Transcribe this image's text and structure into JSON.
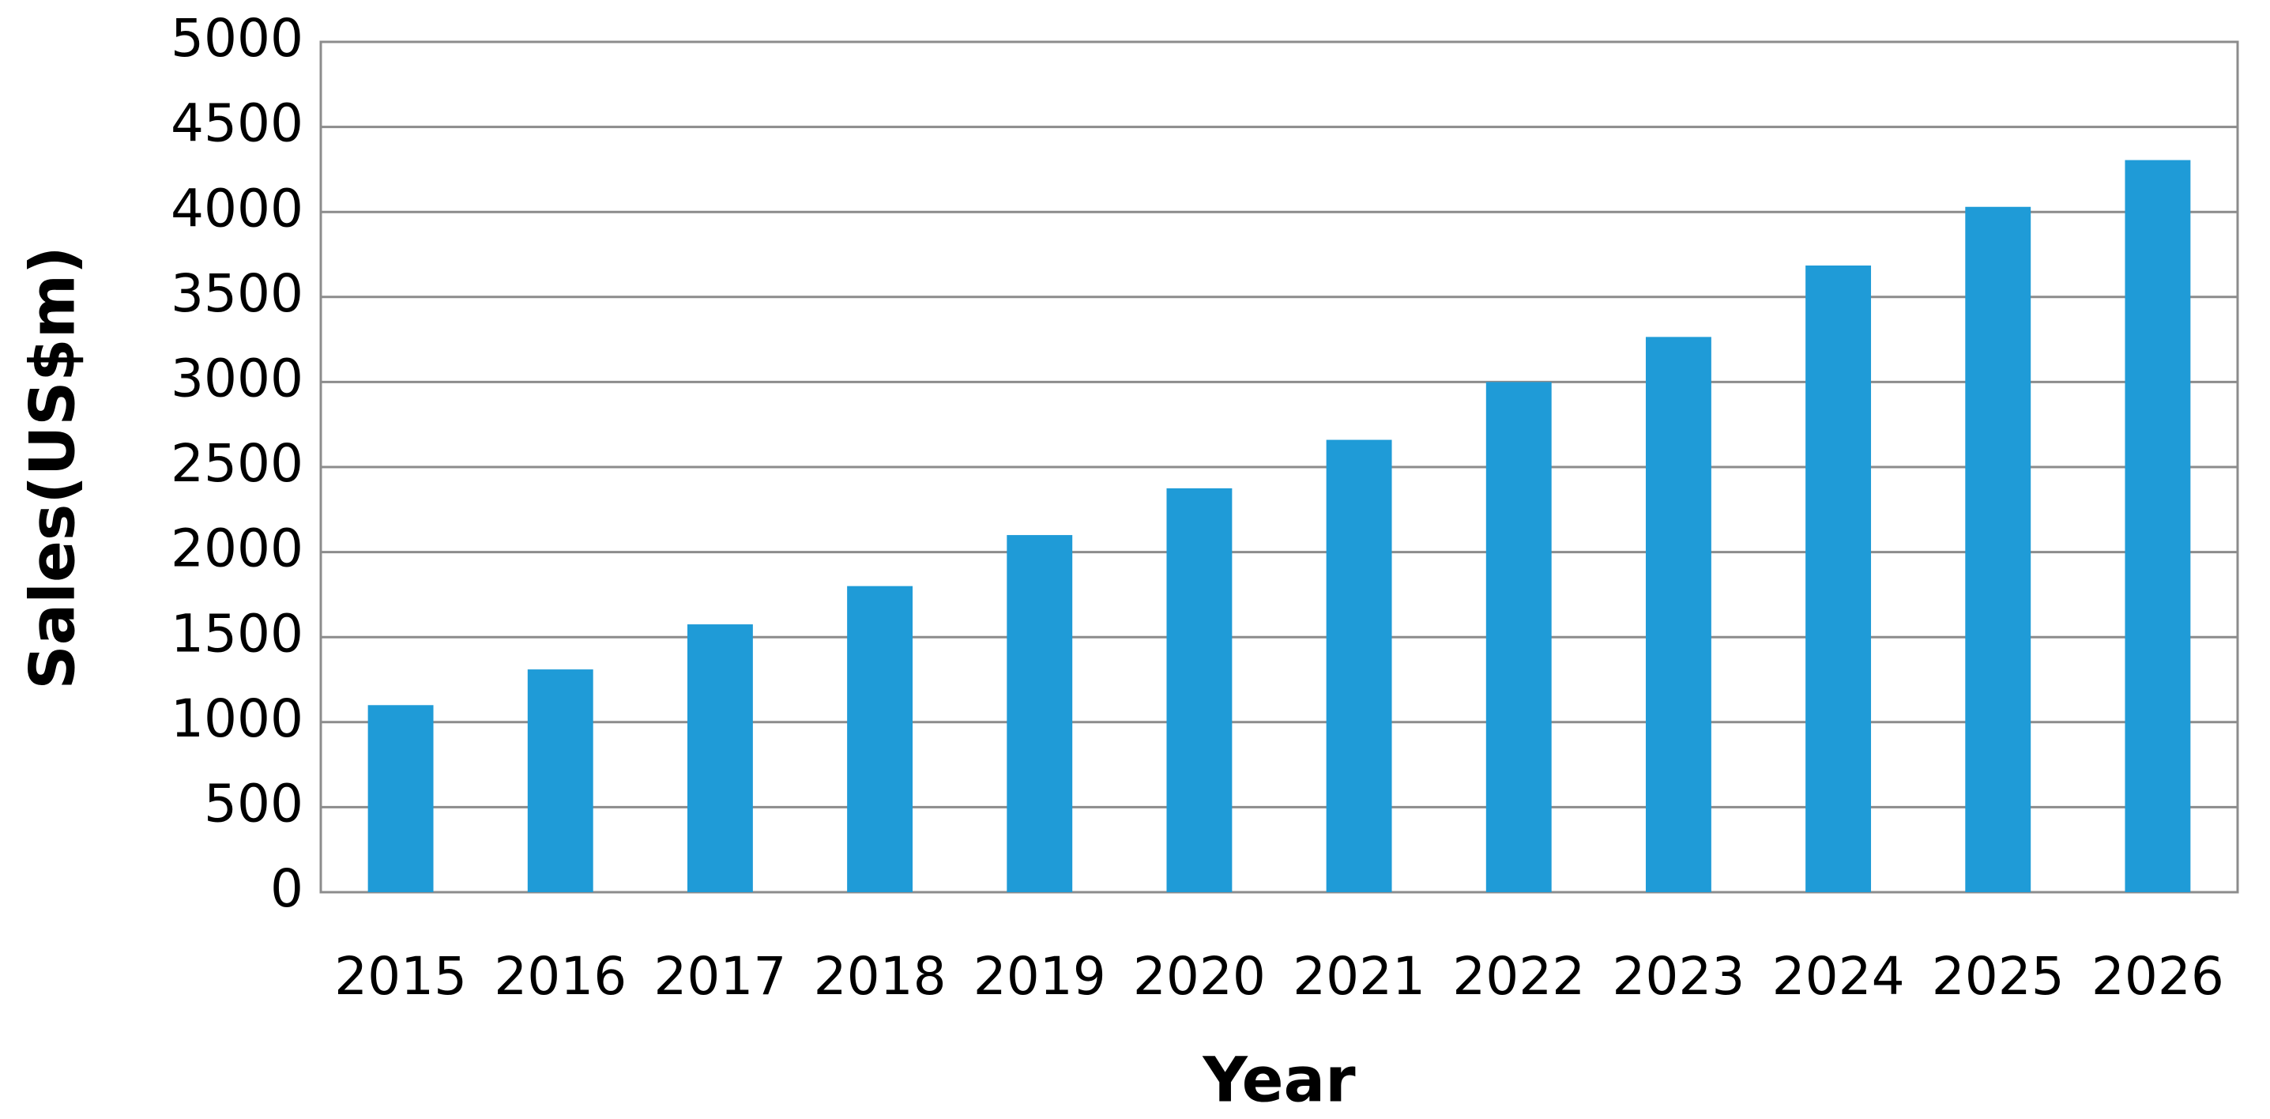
{
  "chart_data": {
    "type": "bar",
    "x_label": "Year",
    "y_label": "Sales(US$m)",
    "categories": [
      "2015",
      "2016",
      "2017",
      "2018",
      "2019",
      "2020",
      "2021",
      "2022",
      "2023",
      "2024",
      "2025",
      "2026"
    ],
    "values": [
      1100,
      1310,
      1575,
      1800,
      2100,
      2375,
      2660,
      3000,
      3265,
      3685,
      4030,
      4305
    ],
    "color": "#1f9bd7",
    "ylim": [
      0,
      5000
    ],
    "yticks": [
      0,
      500,
      1000,
      1500,
      2000,
      2500,
      3000,
      3500,
      4000,
      4500,
      5000
    ],
    "grid": true
  }
}
